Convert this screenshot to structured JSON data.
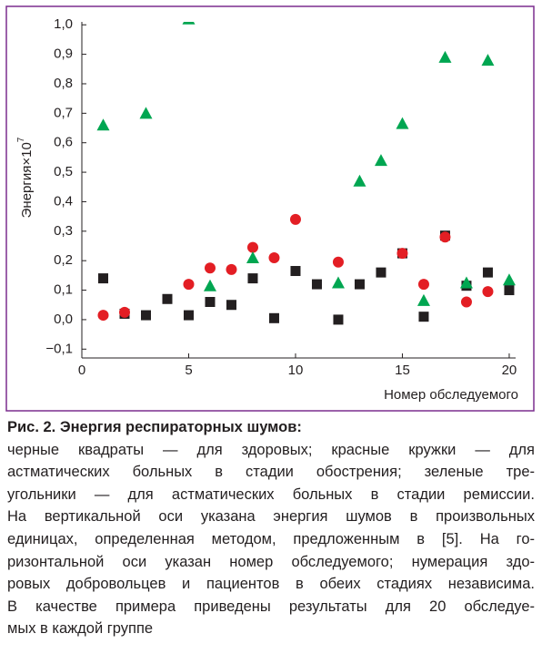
{
  "chart_data": {
    "type": "scatter",
    "y_label": "Энергия×10",
    "y_label_exponent": "7",
    "x_label": "Номер обследуемого",
    "xlim": [
      0,
      20.3
    ],
    "ylim": [
      -0.13,
      1.01
    ],
    "xticks": [
      0,
      5,
      10,
      15,
      20
    ],
    "yticks": [
      {
        "value": 1.0,
        "label": "1,0"
      },
      {
        "value": 0.9,
        "label": "0,9"
      },
      {
        "value": 0.8,
        "label": "0,8"
      },
      {
        "value": 0.7,
        "label": "0,7"
      },
      {
        "value": 0.6,
        "label": "0,6"
      },
      {
        "value": 0.5,
        "label": "0,5"
      },
      {
        "value": 0.4,
        "label": "0,4"
      },
      {
        "value": 0.3,
        "label": "0,3"
      },
      {
        "value": 0.2,
        "label": "0,2"
      },
      {
        "value": 0.1,
        "label": "0,1"
      },
      {
        "value": 0.0,
        "label": "0,0"
      },
      {
        "value": -0.1,
        "label": "−0,1"
      }
    ],
    "series": [
      {
        "color": "#231f20",
        "marker": "square",
        "x": [
          1,
          2,
          3,
          4,
          5,
          6,
          7,
          8,
          9,
          10,
          11,
          12,
          13,
          14,
          15,
          16,
          17,
          18,
          19,
          20
        ],
        "values": [
          0.14,
          0.02,
          0.015,
          0.07,
          0.015,
          0.06,
          0.05,
          0.14,
          0.005,
          0.165,
          0.12,
          0.0,
          0.12,
          0.16,
          0.225,
          0.01,
          0.285,
          0.115,
          0.16,
          0.1
        ]
      },
      {
        "color": "#e31e24",
        "marker": "circle",
        "x": [
          1,
          2,
          5,
          6,
          7,
          8,
          9,
          10,
          12,
          15,
          16,
          17,
          18,
          19
        ],
        "values": [
          0.015,
          0.025,
          0.12,
          0.175,
          0.17,
          0.245,
          0.21,
          0.34,
          0.195,
          0.225,
          0.12,
          0.28,
          0.06,
          0.095
        ]
      },
      {
        "color": "#00a651",
        "marker": "triangle",
        "x": [
          1,
          3,
          5,
          6,
          8,
          12,
          13,
          14,
          15,
          16,
          17,
          18,
          19,
          20
        ],
        "values": [
          0.66,
          0.7,
          1.02,
          0.115,
          0.21,
          0.125,
          0.47,
          0.54,
          0.665,
          0.065,
          0.89,
          0.125,
          0.88,
          0.135
        ]
      }
    ]
  },
  "caption": {
    "title": "Рис. 2. Энергия респираторных шумов:",
    "lines": [
      "черные квадраты — для здоровых; красные кружки — для",
      "астматических больных в стадии обострения; зеленые тре-",
      "угольники — для астматических больных в стадии ремиссии.",
      "На вертикальной оси указана энергия шумов в произвольных",
      "единицах, определенная методом, предложенным в [5]. На го-",
      "ризонтальной оси указан номер обследуемого; нумерация здо-",
      "ровых добровольцев и пациентов в обеих стадиях независима.",
      "В качестве примера приведены результаты для 20 обследуе-",
      "мых в каждой группе"
    ]
  }
}
